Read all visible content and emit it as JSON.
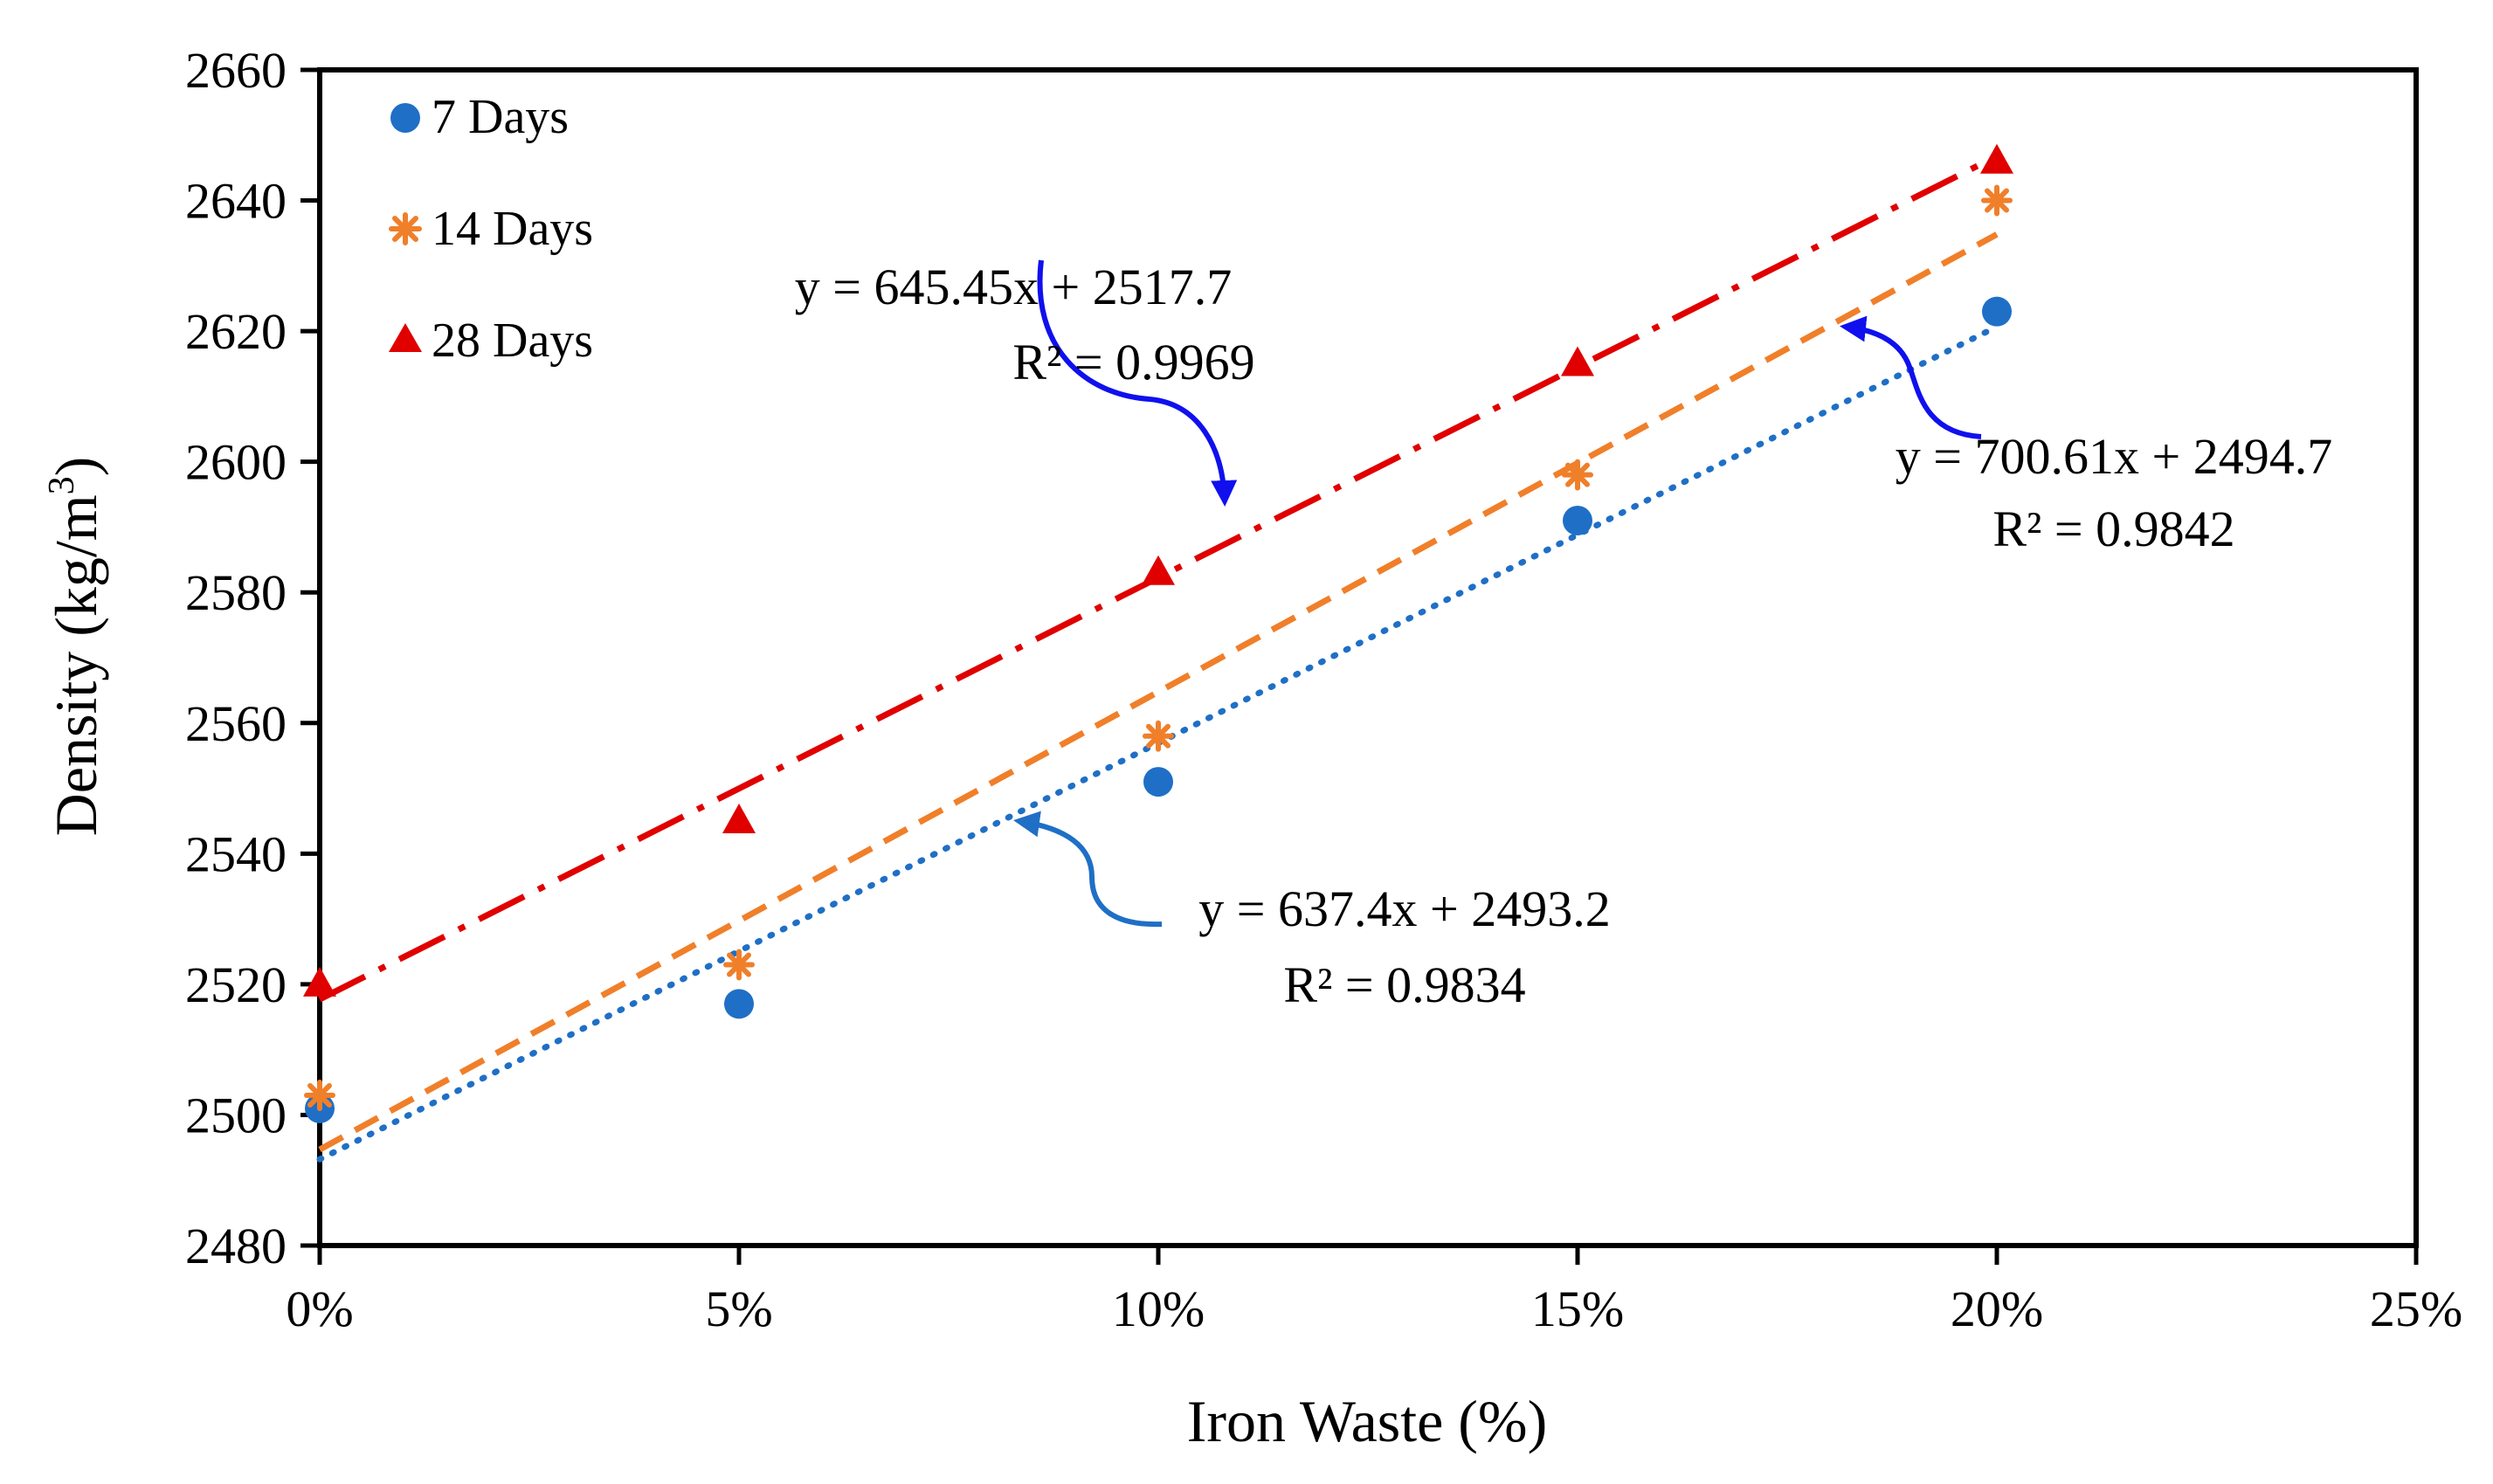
{
  "chart_data": {
    "type": "scatter",
    "title": "",
    "xlabel": "Iron Waste (%)",
    "ylabel": "Density (kg/m3)",
    "ylabel_base": "Density (kg/m",
    "ylabel_sup": "3",
    "ylabel_end": ")",
    "xlim": [
      0,
      0.25
    ],
    "ylim": [
      2480,
      2660
    ],
    "x_ticks": [
      0,
      0.05,
      0.1,
      0.15,
      0.2,
      0.25
    ],
    "x_tick_labels": [
      "0%",
      "5%",
      "10%",
      "15%",
      "20%",
      "25%"
    ],
    "y_ticks": [
      2480,
      2500,
      2520,
      2540,
      2560,
      2580,
      2600,
      2620,
      2640,
      2660
    ],
    "y_tick_labels": [
      "2480",
      "2500",
      "2520",
      "2540",
      "2560",
      "2580",
      "2600",
      "2620",
      "2640",
      "2660"
    ],
    "x": [
      0,
      0.05,
      0.1,
      0.15,
      0.2
    ],
    "series": [
      {
        "name": "7 Days",
        "marker": "circle",
        "color": "#1f6fc6",
        "trend_style": "dotted",
        "values": [
          2501,
          2517,
          2551,
          2591,
          2623
        ],
        "slope": 637.4,
        "intercept": 2493.2
      },
      {
        "name": "14 Days",
        "marker": "asterisk",
        "color": "#f07f2a",
        "trend_style": "dashed",
        "values": [
          2503,
          2523,
          2558,
          2598,
          2640
        ],
        "slope": 700.61,
        "intercept": 2494.7
      },
      {
        "name": "28 Days",
        "marker": "triangle",
        "color": "#e00000",
        "trend_style": "dashdot",
        "values": [
          2520,
          2545,
          2583,
          2615,
          2646
        ],
        "slope": 645.45,
        "intercept": 2517.7
      }
    ],
    "annotations": [
      {
        "eq": "y = 645.45x + 2517.7",
        "r2": "R² = 0.9969",
        "arrow_color": "#1010ee",
        "series": "28 Days"
      },
      {
        "eq": "y = 700.61x + 2494.7",
        "r2": "R² = 0.9842",
        "arrow_color": "#1010ee",
        "series": "14 Days"
      },
      {
        "eq": "y = 637.4x + 2493.2",
        "r2": "R² = 0.9834",
        "arrow_color": "#1f6fc6",
        "series": "7 Days"
      }
    ],
    "legend_position": "top-left",
    "grid": false
  }
}
